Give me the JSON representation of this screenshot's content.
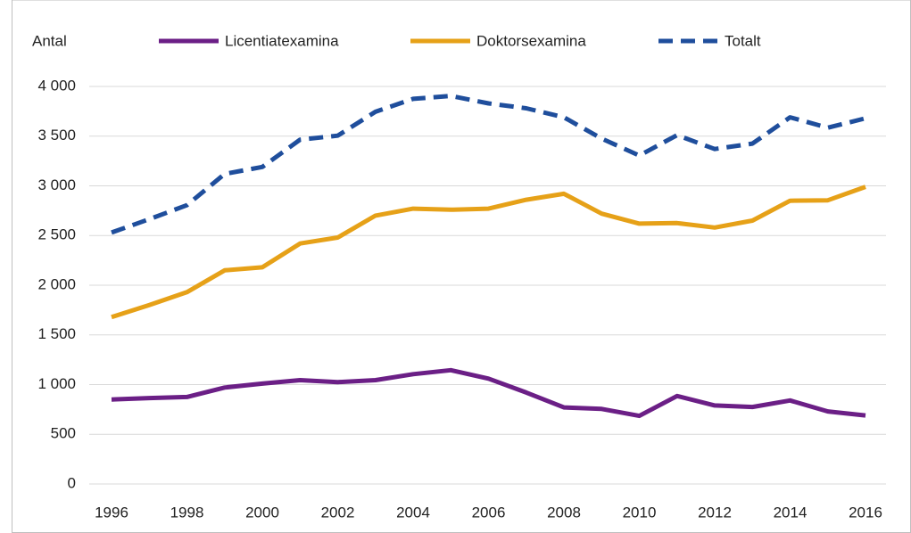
{
  "chart_data": {
    "type": "line",
    "ylabel": "Antal",
    "x": [
      1996,
      1997,
      1998,
      1999,
      2000,
      2001,
      2002,
      2003,
      2004,
      2005,
      2006,
      2007,
      2008,
      2009,
      2010,
      2011,
      2012,
      2013,
      2014,
      2015,
      2016
    ],
    "series": [
      {
        "name": "Licentiatexamina",
        "color": "#6b1f86",
        "dashed": false,
        "values": [
          850,
          865,
          875,
          970,
          1010,
          1045,
          1025,
          1045,
          1105,
          1145,
          1060,
          920,
          770,
          755,
          685,
          885,
          790,
          775,
          840,
          730,
          690
        ]
      },
      {
        "name": "Doktorsexamina",
        "color": "#e6a118",
        "dashed": false,
        "values": [
          1680,
          1800,
          1930,
          2150,
          2180,
          2420,
          2480,
          2700,
          2770,
          2760,
          2770,
          2860,
          2920,
          2720,
          2620,
          2625,
          2580,
          2650,
          2850,
          2855,
          2990
        ]
      },
      {
        "name": "Totalt",
        "color": "#1f4e9c",
        "dashed": true,
        "values": [
          2530,
          2665,
          2805,
          3120,
          3190,
          3465,
          3505,
          3745,
          3875,
          3905,
          3830,
          3780,
          3690,
          3475,
          3305,
          3510,
          3370,
          3425,
          3690,
          3585,
          3680
        ]
      }
    ],
    "xlim": [
      1996,
      2016
    ],
    "xticks": [
      1996,
      1998,
      2000,
      2002,
      2004,
      2006,
      2008,
      2010,
      2012,
      2014,
      2016
    ],
    "ylim": [
      0,
      4000
    ],
    "yticks": [
      0,
      500,
      {
        "value": 1000,
        "label": "1 000"
      },
      {
        "value": 1500,
        "label": "1 500"
      },
      {
        "value": 2000,
        "label": "2 000"
      },
      {
        "value": 2500,
        "label": "2 500"
      },
      {
        "value": 3000,
        "label": "3 000"
      },
      {
        "value": 3500,
        "label": "3 500"
      },
      {
        "value": 4000,
        "label": "4 000"
      }
    ],
    "grid": true,
    "legend": "top"
  }
}
